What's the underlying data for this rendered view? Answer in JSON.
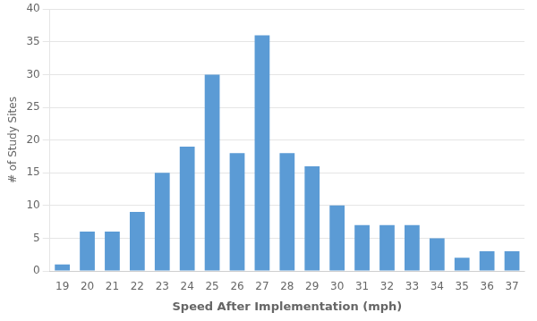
{
  "chart_data": {
    "type": "bar",
    "categories": [
      19,
      20,
      21,
      22,
      23,
      24,
      25,
      26,
      27,
      28,
      29,
      30,
      31,
      32,
      33,
      34,
      35,
      36,
      37
    ],
    "values": [
      1,
      6,
      6,
      9,
      15,
      19,
      30,
      18,
      36,
      18,
      16,
      10,
      7,
      7,
      7,
      5,
      2,
      3,
      3
    ],
    "color": "#5B9BD5",
    "xlabel": "Speed After Implementation (mph)",
    "ylabel": "# of Study Sites",
    "ylim": [
      0,
      40
    ],
    "yticks": [
      0,
      5,
      10,
      15,
      20,
      25,
      30,
      35,
      40
    ],
    "grid": true
  }
}
